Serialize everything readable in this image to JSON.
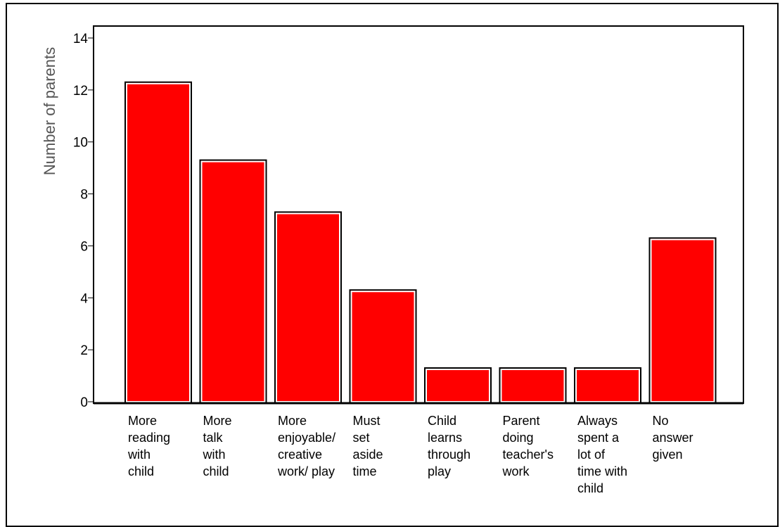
{
  "chart_data": {
    "type": "bar",
    "title": "",
    "ylabel": "Number of parents",
    "xlabel": "",
    "ylim": [
      0,
      14
    ],
    "yticks": [
      "0",
      "2",
      "4",
      "6",
      "8",
      "10",
      "12",
      "14"
    ],
    "categories": [
      [
        "More",
        "reading",
        "with",
        "child"
      ],
      [
        "More",
        "talk",
        "with",
        "child"
      ],
      [
        "More",
        "enjoyable/",
        "creative",
        "work/ play"
      ],
      [
        "Must",
        "set",
        "aside",
        "time"
      ],
      [
        "Child",
        "learns",
        "through",
        "play"
      ],
      [
        "Parent",
        "doing",
        "teacher's",
        "work"
      ],
      [
        "Always",
        "spent a",
        "lot of",
        "time with",
        "child"
      ],
      [
        "No",
        "answer",
        "given"
      ]
    ],
    "values": [
      12,
      9,
      7,
      4,
      1,
      1,
      1,
      6
    ],
    "colors": {
      "bar": "#ff0000",
      "outline": "#000000"
    },
    "grid": false
  }
}
